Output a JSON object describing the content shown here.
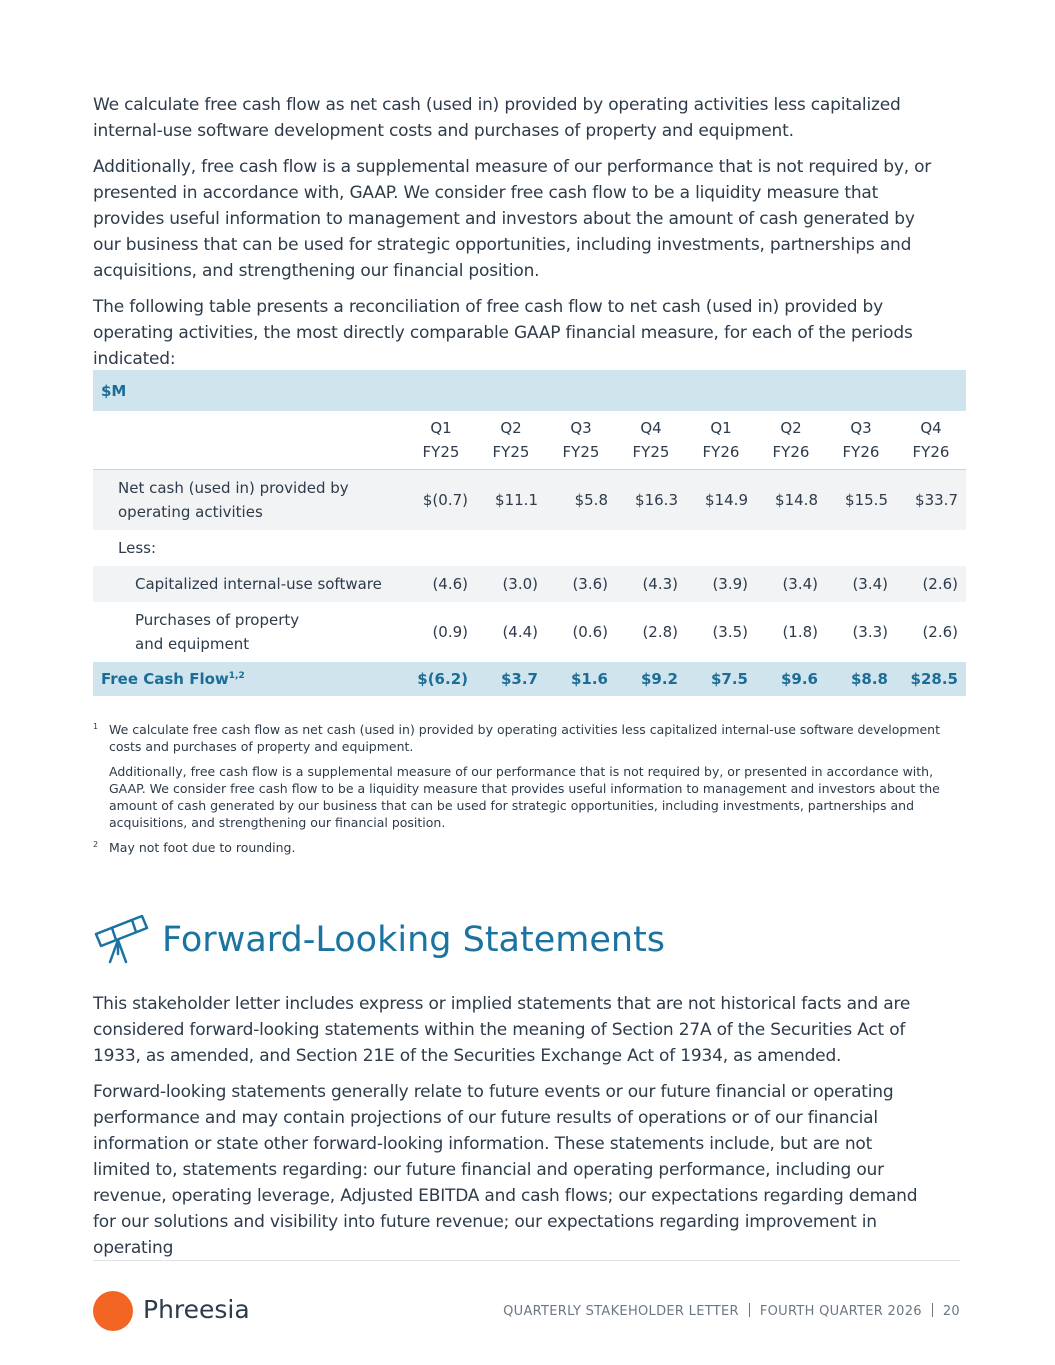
{
  "intro": {
    "paragraphs": [
      "We calculate free cash flow as net cash (used in) provided by operating activities less capitalized internal-use software development costs and purchases of property and equipment.",
      "Additionally, free cash flow is a supplemental measure of our performance that is not required by, or presented in accordance with, GAAP. We consider free cash flow to be a liquidity measure that provides useful information to management and investors about the amount of cash generated by our business that can be used for strategic opportunities, including investments, partnerships and acquisitions, and strengthening our financial position.",
      "The following table presents a reconciliation of free cash flow to net cash (used in) provided by operating activities, the most directly comparable GAAP financial measure, for each of the periods indicated:"
    ]
  },
  "table": {
    "unit": "$M",
    "columns": [
      [
        "Q1",
        "FY25"
      ],
      [
        "Q2",
        "FY25"
      ],
      [
        "Q3",
        "FY25"
      ],
      [
        "Q4",
        "FY25"
      ],
      [
        "Q1",
        "FY26"
      ],
      [
        "Q2",
        "FY26"
      ],
      [
        "Q3",
        "FY26"
      ],
      [
        "Q4",
        "FY26"
      ]
    ],
    "rows": [
      {
        "label": "Net cash (used in) provided by operating activities",
        "values": [
          "$(0.7)",
          "$11.1",
          "$5.8",
          "$16.3",
          "$14.9",
          "$14.8",
          "$15.5",
          "$33.7"
        ]
      },
      {
        "label": "Less:"
      },
      {
        "label": "Capitalized internal-use software",
        "values": [
          "(4.6)",
          "(3.0)",
          "(3.6)",
          "(4.3)",
          "(3.9)",
          "(3.4)",
          "(3.4)",
          "(2.6)"
        ]
      },
      {
        "label": "Purchases of property and equipment",
        "values": [
          "(0.9)",
          "(4.4)",
          "(0.6)",
          "(2.8)",
          "(3.5)",
          "(1.8)",
          "(3.3)",
          "(2.6)"
        ]
      }
    ],
    "total": {
      "label": "Free Cash Flow",
      "note": "1,2",
      "values": [
        "$(6.2)",
        "$3.7",
        "$1.6",
        "$9.2",
        "$7.5",
        "$9.6",
        "$8.8",
        "$28.5"
      ]
    }
  },
  "footnotes": [
    {
      "marker": "1",
      "paragraphs": [
        "We calculate free cash flow as net cash (used in) provided by operating activities less capitalized internal-use software development costs and purchases of property and equipment.",
        "Additionally, free cash flow is a supplemental measure of our performance that is not required by, or presented in accordance with, GAAP. We consider free cash flow to be a liquidity measure that provides useful information to management and investors about the amount of cash generated by our business that can be used for strategic opportunities, including investments, partnerships and acquisitions, and strengthening our financial position."
      ]
    },
    {
      "marker": "2",
      "paragraphs": [
        "May not foot due to rounding."
      ]
    }
  ],
  "section": {
    "title": "Forward-Looking Statements",
    "paragraphs": [
      "This stakeholder letter includes express or implied statements that are not historical facts and are considered forward-looking statements within the meaning of Section 27A of the Securities Act of 1933, as amended, and Section 21E of the Securities Exchange Act of 1934, as amended.",
      "Forward-looking statements generally relate to future events or our future financial or operating performance and may contain projections of our future results of operations or of our financial information or state other forward-looking information. These statements include, but are not limited to, statements regarding: our future financial and operating performance, including our revenue, operating leverage, Adjusted EBITDA and cash flows; our expectations regarding demand for our solutions and visibility into future revenue; our expectations regarding improvement in operating"
    ]
  },
  "footer": {
    "brand": "Phreesia",
    "letter": "QUARTERLY STAKEHOLDER LETTER",
    "quarter": "FOURTH QUARTER 2026",
    "page": 20
  }
}
